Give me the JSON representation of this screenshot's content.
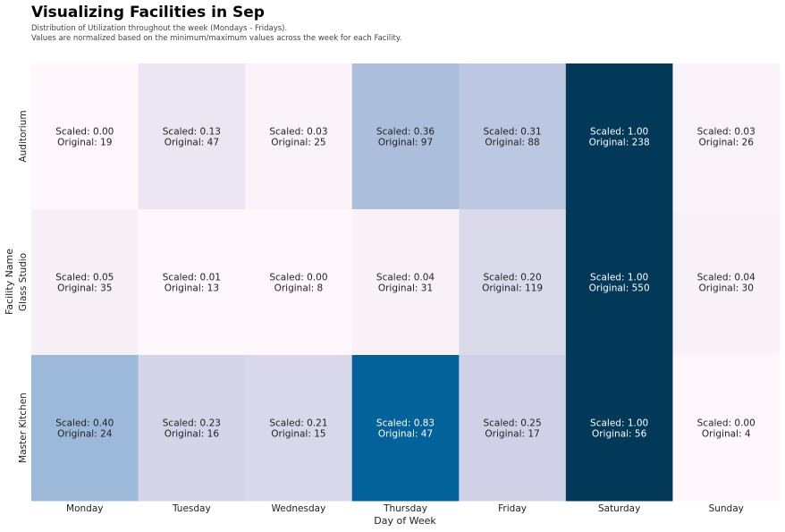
{
  "chart_data": {
    "type": "heatmap",
    "title": "Visualizing Facilities in Sep",
    "subtitle_lines": [
      "Distribution of Utilization throughout the week (Mondays - Fridays).",
      "Values are normalized based on the minimum/maximum values across the week for each Facility."
    ],
    "xlabel": "Day of Week",
    "ylabel": "Facility Name",
    "x_categories": [
      "Monday",
      "Tuesday",
      "Wednesday",
      "Thursday",
      "Friday",
      "Saturday",
      "Sunday"
    ],
    "y_categories": [
      "Auditorium",
      "Glass Studio",
      "Master Kitchen"
    ],
    "cell_label_prefix_scaled": "Scaled:",
    "cell_label_prefix_original": "Original:",
    "scaled": [
      [
        0.0,
        0.13,
        0.03,
        0.36,
        0.31,
        1.0,
        0.03
      ],
      [
        0.05,
        0.01,
        0.0,
        0.04,
        0.2,
        1.0,
        0.04
      ],
      [
        0.4,
        0.23,
        0.21,
        0.83,
        0.25,
        1.0,
        0.0
      ]
    ],
    "original": [
      [
        19,
        47,
        25,
        97,
        88,
        238,
        26
      ],
      [
        35,
        13,
        8,
        31,
        119,
        550,
        30
      ],
      [
        24,
        16,
        15,
        47,
        17,
        56,
        4
      ]
    ],
    "colormap": {
      "stops": [
        [
          0.0,
          "#fff7fb"
        ],
        [
          0.125,
          "#ece7f2"
        ],
        [
          0.25,
          "#d0d1e6"
        ],
        [
          0.375,
          "#a6bddb"
        ],
        [
          0.5,
          "#74a9cf"
        ],
        [
          0.625,
          "#3690c0"
        ],
        [
          0.75,
          "#0570b0"
        ],
        [
          0.875,
          "#045a8d"
        ],
        [
          1.0,
          "#023858"
        ]
      ],
      "light_text_threshold": 0.6
    },
    "text_color_dark": "#222222",
    "text_color_light": "#ffffff",
    "legend": "none",
    "grid": false
  }
}
